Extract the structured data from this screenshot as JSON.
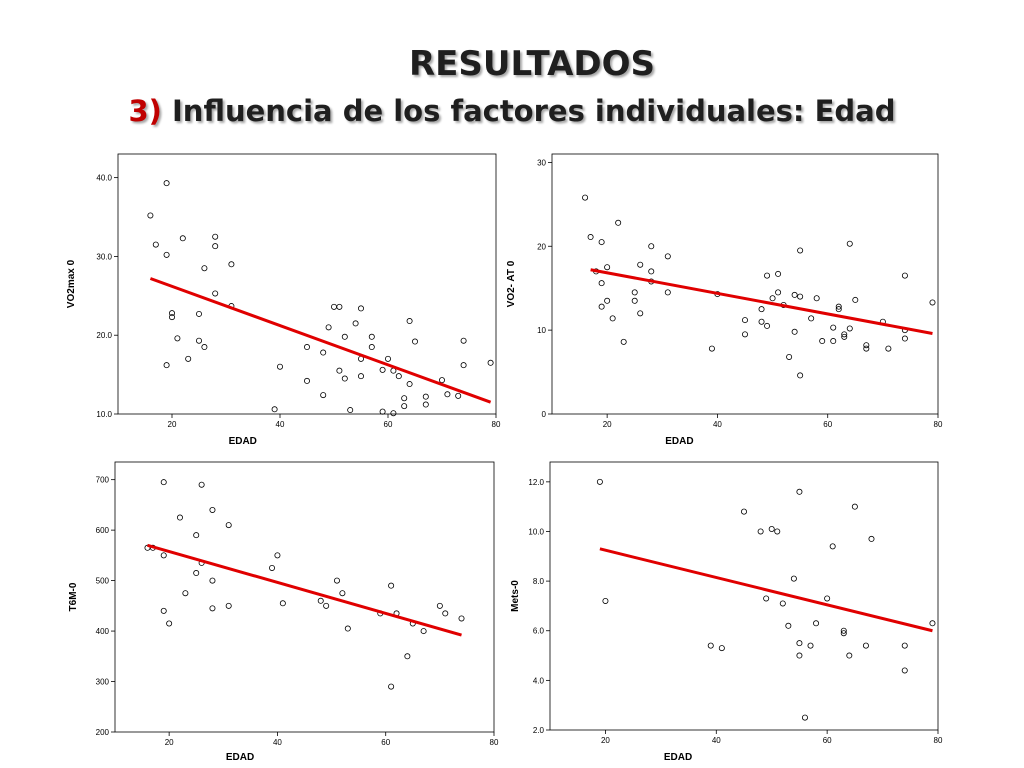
{
  "slide": {
    "title": "RESULTADOS",
    "subtitle_number": "3)",
    "subtitle_text": "Influencia de los factores individuales: Edad"
  },
  "colors": {
    "regression_line": "#e00000",
    "points": "#000000",
    "title_number": "#c00000"
  },
  "chart_data": [
    {
      "type": "scatter",
      "xlabel": "EDAD",
      "ylabel": "VO2max 0",
      "xlim": [
        10,
        80
      ],
      "ylim": [
        10,
        43
      ],
      "x_ticks": [
        20,
        40,
        60,
        80
      ],
      "y_ticks": [
        10,
        20,
        30,
        40
      ],
      "tick_decimals": 1,
      "grid": false,
      "points": [
        [
          16,
          35.2
        ],
        [
          17,
          31.5
        ],
        [
          19,
          39.3
        ],
        [
          19,
          30.2
        ],
        [
          19,
          16.2
        ],
        [
          20,
          22.8
        ],
        [
          20,
          22.3
        ],
        [
          21,
          19.6
        ],
        [
          22,
          32.3
        ],
        [
          23,
          17
        ],
        [
          25,
          22.7
        ],
        [
          25,
          19.3
        ],
        [
          26,
          28.5
        ],
        [
          26,
          18.5
        ],
        [
          28,
          32.5
        ],
        [
          28,
          31.3
        ],
        [
          28,
          25.3
        ],
        [
          31,
          29
        ],
        [
          31,
          23.7
        ],
        [
          39,
          10.6
        ],
        [
          40,
          16
        ],
        [
          45,
          18.5
        ],
        [
          45,
          14.2
        ],
        [
          48,
          17.8
        ],
        [
          48,
          12.4
        ],
        [
          49,
          21
        ],
        [
          50,
          23.6
        ],
        [
          51,
          23.6
        ],
        [
          51,
          15.5
        ],
        [
          52,
          19.8
        ],
        [
          52,
          14.5
        ],
        [
          53,
          10.5
        ],
        [
          54,
          21.5
        ],
        [
          55,
          23.4
        ],
        [
          55,
          14.8
        ],
        [
          55,
          17
        ],
        [
          57,
          18.5
        ],
        [
          57,
          19.8
        ],
        [
          59,
          10.3
        ],
        [
          59,
          15.6
        ],
        [
          60,
          17
        ],
        [
          61,
          10.1
        ],
        [
          61,
          15.5
        ],
        [
          62,
          14.8
        ],
        [
          63,
          12
        ],
        [
          63,
          11
        ],
        [
          64,
          21.8
        ],
        [
          64,
          13.8
        ],
        [
          65,
          19.2
        ],
        [
          67,
          12.2
        ],
        [
          67,
          11.2
        ],
        [
          70,
          14.3
        ],
        [
          71,
          12.5
        ],
        [
          73,
          12.3
        ],
        [
          74,
          16.2
        ],
        [
          74,
          19.3
        ],
        [
          79,
          16.5
        ]
      ],
      "fit_line": {
        "x": [
          16,
          79
        ],
        "y": [
          27.2,
          11.5
        ]
      }
    },
    {
      "type": "scatter",
      "xlabel": "EDAD",
      "ylabel": "VO2- AT 0",
      "xlim": [
        10,
        80
      ],
      "ylim": [
        0,
        31
      ],
      "x_ticks": [
        20,
        40,
        60,
        80
      ],
      "y_ticks": [
        0,
        10,
        20,
        30
      ],
      "tick_decimals": 0,
      "grid": false,
      "points": [
        [
          16,
          25.8
        ],
        [
          17,
          21.1
        ],
        [
          18,
          17
        ],
        [
          19,
          20.5
        ],
        [
          19,
          15.6
        ],
        [
          19,
          12.8
        ],
        [
          20,
          17.5
        ],
        [
          20,
          13.5
        ],
        [
          21,
          11.4
        ],
        [
          22,
          22.8
        ],
        [
          23,
          8.6
        ],
        [
          25,
          14.5
        ],
        [
          25,
          13.5
        ],
        [
          26,
          12
        ],
        [
          26,
          17.8
        ],
        [
          28,
          20
        ],
        [
          28,
          17
        ],
        [
          28,
          15.8
        ],
        [
          31,
          18.8
        ],
        [
          31,
          14.5
        ],
        [
          39,
          7.8
        ],
        [
          40,
          14.3
        ],
        [
          45,
          9.5
        ],
        [
          45,
          11.2
        ],
        [
          48,
          12.5
        ],
        [
          48,
          11
        ],
        [
          49,
          16.5
        ],
        [
          49,
          10.5
        ],
        [
          50,
          13.8
        ],
        [
          51,
          16.7
        ],
        [
          51,
          14.5
        ],
        [
          52,
          13
        ],
        [
          53,
          6.8
        ],
        [
          54,
          9.8
        ],
        [
          54,
          14.2
        ],
        [
          55,
          19.5
        ],
        [
          55,
          14
        ],
        [
          55,
          4.6
        ],
        [
          57,
          11.4
        ],
        [
          58,
          13.8
        ],
        [
          59,
          8.7
        ],
        [
          61,
          8.7
        ],
        [
          61,
          10.3
        ],
        [
          62,
          12.8
        ],
        [
          62,
          12.5
        ],
        [
          63,
          9.2
        ],
        [
          63,
          9.5
        ],
        [
          64,
          20.3
        ],
        [
          64,
          10.2
        ],
        [
          65,
          13.6
        ],
        [
          67,
          8.2
        ],
        [
          67,
          7.8
        ],
        [
          70,
          11
        ],
        [
          71,
          7.8
        ],
        [
          74,
          16.5
        ],
        [
          74,
          9
        ],
        [
          74,
          10
        ],
        [
          79,
          13.3
        ]
      ],
      "fit_line": {
        "x": [
          17,
          79
        ],
        "y": [
          17.2,
          9.6
        ]
      }
    },
    {
      "type": "scatter",
      "xlabel": "EDAD",
      "ylabel": "T6M-0",
      "xlim": [
        10,
        80
      ],
      "ylim": [
        200,
        735
      ],
      "x_ticks": [
        20,
        40,
        60,
        80
      ],
      "y_ticks": [
        200,
        300,
        400,
        500,
        600,
        700
      ],
      "tick_decimals": 0,
      "grid": false,
      "points": [
        [
          16,
          565
        ],
        [
          17,
          565
        ],
        [
          19,
          695
        ],
        [
          19,
          550
        ],
        [
          19,
          440
        ],
        [
          20,
          415
        ],
        [
          22,
          625
        ],
        [
          23,
          475
        ],
        [
          25,
          590
        ],
        [
          25,
          515
        ],
        [
          26,
          690
        ],
        [
          26,
          535
        ],
        [
          28,
          640
        ],
        [
          28,
          500
        ],
        [
          28,
          445
        ],
        [
          31,
          610
        ],
        [
          31,
          450
        ],
        [
          39,
          525
        ],
        [
          40,
          550
        ],
        [
          41,
          455
        ],
        [
          48,
          460
        ],
        [
          49,
          450
        ],
        [
          51,
          500
        ],
        [
          52,
          475
        ],
        [
          53,
          405
        ],
        [
          59,
          435
        ],
        [
          61,
          490
        ],
        [
          61,
          290
        ],
        [
          62,
          435
        ],
        [
          64,
          350
        ],
        [
          65,
          415
        ],
        [
          67,
          400
        ],
        [
          70,
          450
        ],
        [
          71,
          435
        ],
        [
          74,
          425
        ]
      ],
      "fit_line": {
        "x": [
          16,
          74
        ],
        "y": [
          570,
          392
        ]
      }
    },
    {
      "type": "scatter",
      "xlabel": "EDAD",
      "ylabel": "Mets-0",
      "xlim": [
        10,
        80
      ],
      "ylim": [
        2,
        12.8
      ],
      "x_ticks": [
        20,
        40,
        60,
        80
      ],
      "y_ticks": [
        2,
        4,
        6,
        8,
        10,
        12
      ],
      "tick_decimals": 1,
      "grid": false,
      "points": [
        [
          19,
          12
        ],
        [
          20,
          7.2
        ],
        [
          39,
          5.4
        ],
        [
          41,
          5.3
        ],
        [
          45,
          10.8
        ],
        [
          48,
          10
        ],
        [
          49,
          7.3
        ],
        [
          50,
          10.1
        ],
        [
          51,
          10
        ],
        [
          52,
          7.1
        ],
        [
          53,
          6.2
        ],
        [
          54,
          8.1
        ],
        [
          55,
          11.6
        ],
        [
          55,
          5.5
        ],
        [
          55,
          5
        ],
        [
          56,
          2.5
        ],
        [
          57,
          5.4
        ],
        [
          58,
          6.3
        ],
        [
          60,
          7.3
        ],
        [
          61,
          9.4
        ],
        [
          63,
          6
        ],
        [
          63,
          5.9
        ],
        [
          64,
          5
        ],
        [
          65,
          11
        ],
        [
          67,
          5.4
        ],
        [
          68,
          9.7
        ],
        [
          74,
          5.4
        ],
        [
          74,
          4.4
        ],
        [
          79,
          6.3
        ]
      ],
      "fit_line": {
        "x": [
          19,
          79
        ],
        "y": [
          9.3,
          6
        ]
      }
    }
  ]
}
